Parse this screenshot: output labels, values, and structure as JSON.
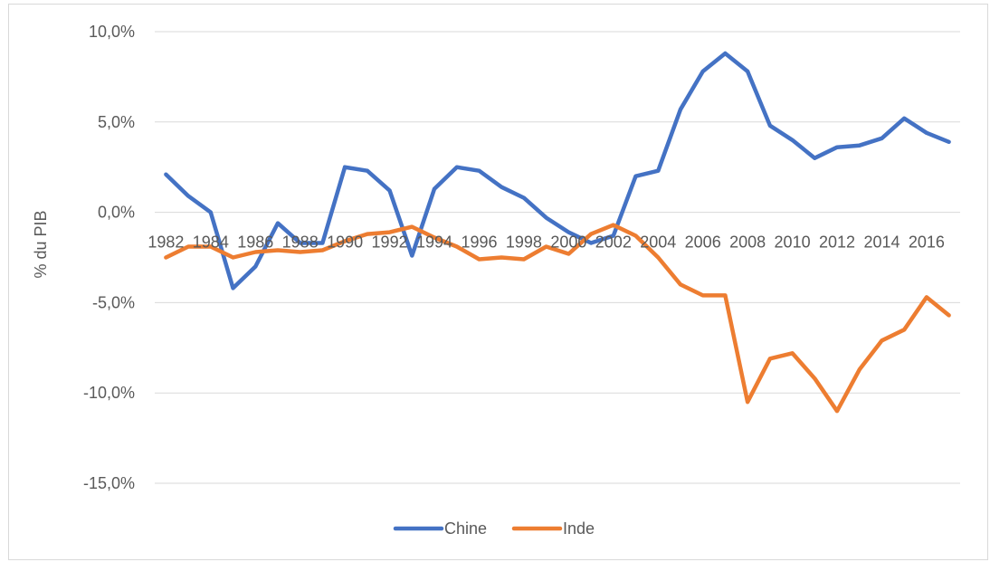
{
  "chart_data": {
    "type": "line",
    "title": "",
    "xlabel": "",
    "ylabel": "% du PIB",
    "ylim": [
      -0.15,
      0.1
    ],
    "y_ticks": [
      0.1,
      0.05,
      0.0,
      -0.05,
      -0.1,
      -0.15
    ],
    "y_tick_labels": [
      "10,0%",
      "5,0%",
      "0,0%",
      "-5,0%",
      "-10,0%",
      "-15,0%"
    ],
    "x": [
      1982,
      1983,
      1984,
      1985,
      1986,
      1987,
      1988,
      1989,
      1990,
      1991,
      1992,
      1993,
      1994,
      1995,
      1996,
      1997,
      1998,
      1999,
      2000,
      2001,
      2002,
      2003,
      2004,
      2005,
      2006,
      2007,
      2008,
      2009,
      2010,
      2011,
      2012,
      2013,
      2014,
      2015,
      2016,
      2017
    ],
    "x_tick_labels": [
      "1982",
      "1984",
      "1986",
      "1988",
      "1990",
      "1992",
      "1994",
      "1996",
      "1998",
      "2000",
      "2002",
      "2004",
      "2006",
      "2008",
      "2010",
      "2012",
      "2014",
      "2016"
    ],
    "grid": true,
    "legend_position": "bottom",
    "series": [
      {
        "name": "Chine",
        "color": "#4472C4",
        "values": [
          0.021,
          0.009,
          0.0,
          -0.042,
          -0.03,
          -0.006,
          -0.017,
          -0.017,
          0.025,
          0.023,
          0.012,
          -0.024,
          0.013,
          0.025,
          0.023,
          0.014,
          0.008,
          -0.003,
          -0.011,
          -0.017,
          -0.013,
          0.02,
          0.023,
          0.057,
          0.078,
          0.088,
          0.078,
          0.048,
          0.04,
          0.03,
          0.036,
          0.037,
          0.041,
          0.052,
          0.044,
          0.039
        ]
      },
      {
        "name": "Inde",
        "color": "#ED7D31",
        "values": [
          -0.025,
          -0.019,
          -0.019,
          -0.025,
          -0.022,
          -0.021,
          -0.022,
          -0.021,
          -0.016,
          -0.012,
          -0.011,
          -0.008,
          -0.014,
          -0.019,
          -0.026,
          -0.025,
          -0.026,
          -0.019,
          -0.023,
          -0.012,
          -0.007,
          -0.013,
          -0.025,
          -0.04,
          -0.046,
          -0.046,
          -0.105,
          -0.081,
          -0.078,
          -0.092,
          -0.11,
          -0.087,
          -0.071,
          -0.065,
          -0.047,
          -0.057
        ]
      }
    ]
  }
}
